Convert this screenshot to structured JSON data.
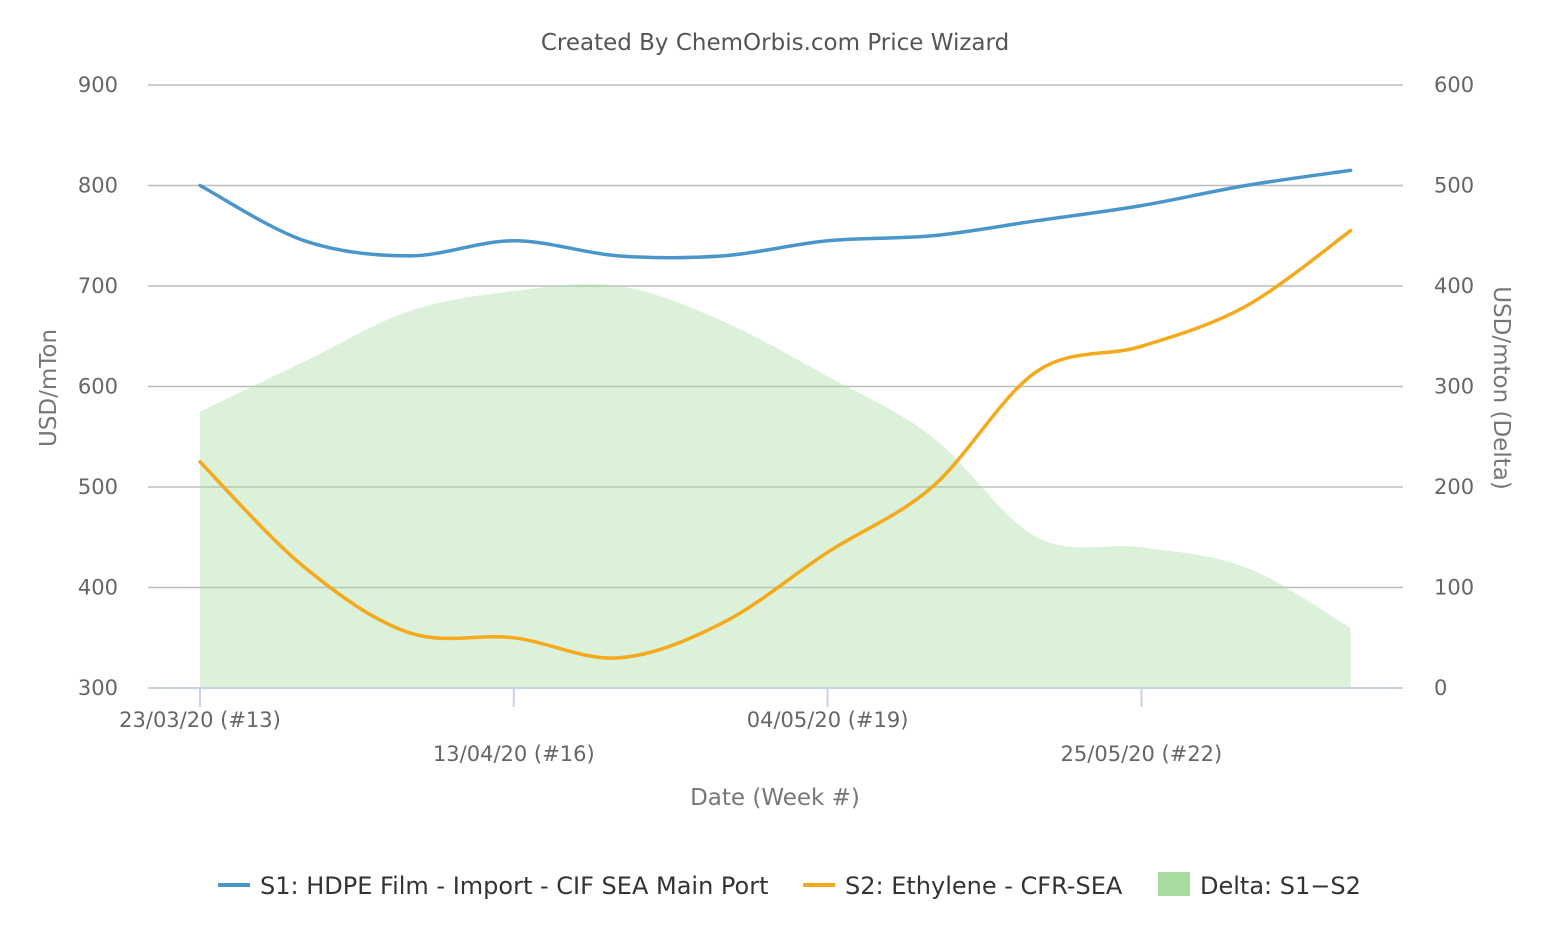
{
  "chart_data": {
    "type": "line",
    "title": "Created By ChemOrbis.com Price Wizard",
    "xlabel": "Date (Week #)",
    "ylabel": "USD/mTon",
    "y2label": "USD/mton (Delta)",
    "ylim": [
      300,
      900
    ],
    "y2lim": [
      0,
      600
    ],
    "yticks": [
      "300",
      "400",
      "500",
      "600",
      "700",
      "800",
      "900"
    ],
    "y2ticks": [
      "0",
      "100",
      "200",
      "300",
      "400",
      "500",
      "600"
    ],
    "x_tick_labels": [
      {
        "label": "23/03/20 (#13)",
        "week": 13
      },
      {
        "label": "13/04/20 (#16)",
        "week": 16
      },
      {
        "label": "04/05/20 (#19)",
        "week": 19
      },
      {
        "label": "25/05/20 (#22)",
        "week": 22
      }
    ],
    "weeks": [
      13,
      14,
      15,
      16,
      17,
      18,
      19,
      20,
      21,
      22,
      23,
      24
    ],
    "series": [
      {
        "name": "S1: HDPE Film - Import - CIF SEA Main Port",
        "kind": "line",
        "axis": "left",
        "color": "#4a96cb",
        "values": [
          800,
          745,
          730,
          745,
          730,
          730,
          745,
          750,
          765,
          780,
          800,
          815
        ]
      },
      {
        "name": "S2: Ethylene - CFR-SEA",
        "kind": "line",
        "axis": "left",
        "color": "#f5a91b",
        "values": [
          525,
          420,
          355,
          350,
          330,
          365,
          435,
          500,
          615,
          640,
          680,
          755
        ]
      },
      {
        "name": "Delta: S1−S2",
        "kind": "area",
        "axis": "right",
        "color": "#a8dba0",
        "values": [
          275,
          325,
          375,
          395,
          400,
          365,
          310,
          250,
          150,
          140,
          120,
          60
        ]
      }
    ],
    "grid": true,
    "legend_position": "bottom-center"
  }
}
